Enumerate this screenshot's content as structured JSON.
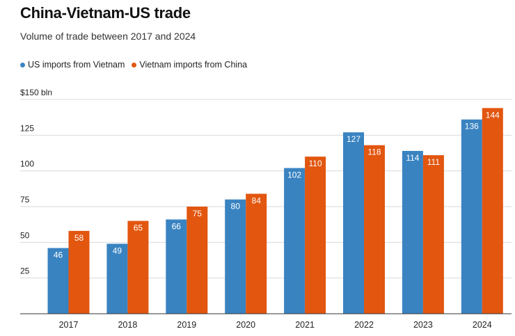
{
  "chart_data": {
    "type": "bar",
    "title": "China-Vietnam-US trade",
    "subtitle": "Volume of trade between 2017 and 2024",
    "categories": [
      "2017",
      "2018",
      "2019",
      "2020",
      "2021",
      "2022",
      "2023",
      "2024"
    ],
    "series": [
      {
        "name": "US imports from Vietnam",
        "color": "#3a83c1",
        "values": [
          46,
          49,
          66,
          80,
          102,
          127,
          114,
          136
        ]
      },
      {
        "name": "Vietnam imports from China",
        "color": "#e2560f",
        "values": [
          58,
          65,
          75,
          84,
          110,
          118,
          111,
          144
        ]
      }
    ],
    "ylim": [
      0,
      150
    ],
    "yticks": [
      {
        "value": 25,
        "label": "25"
      },
      {
        "value": 50,
        "label": "50"
      },
      {
        "value": 75,
        "label": "75"
      },
      {
        "value": 100,
        "label": "100"
      },
      {
        "value": 125,
        "label": "125"
      },
      {
        "value": 150,
        "label": "$150 bln"
      }
    ],
    "grid": true,
    "legend_position": "top-left",
    "data_labels": true
  }
}
